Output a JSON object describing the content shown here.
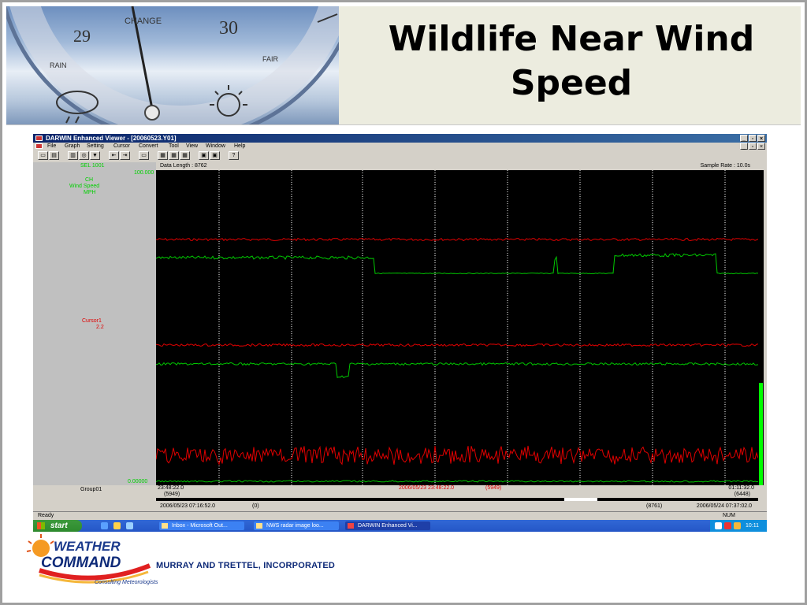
{
  "slide": {
    "title": "Wildlife Near Wind Speed",
    "company": "MURRAY AND TRETTEL, INCORPORATED",
    "logo": {
      "word1": "WEATHER",
      "word2": "COMMAND",
      "tagline": "Consulting Meteorologists"
    },
    "barometer": {
      "labels": [
        "CHANGE",
        "29",
        "30",
        "RAIN",
        "FAIR"
      ],
      "icons": [
        "cloud-rain-icon",
        "sun-icon"
      ]
    }
  },
  "app": {
    "window_title": "DARWIN Enhanced Viewer - [20060523.Y01]",
    "menu": [
      "File",
      "Graph",
      "Setting",
      "Cursor",
      "Convert",
      "Tool",
      "View",
      "Window",
      "Help"
    ],
    "toolbar_icons": [
      "open-icon",
      "print-icon",
      "copy-icon",
      "refresh-icon",
      "filter-icon",
      "zoom-out-icon",
      "zoom-in-icon",
      "fit-icon",
      "graph1-icon",
      "graph2-icon",
      "graph3-icon",
      "save-icon",
      "export-icon",
      "help-icon"
    ],
    "data_length": "Data Length : 8762",
    "sample_rate": "Sample Rate : 10.0s",
    "left_panel": {
      "top_label": "SEL 1001",
      "ch_label": "CH",
      "ch_desc": "Wind Speed",
      "ch_unit": "MPH",
      "ymax": "100.000",
      "cursor_label": "Cursor1",
      "cursor_value": "2.2",
      "ymin": "0.00000",
      "group": "Group01"
    },
    "axis": {
      "left_time": "23:48:22.0",
      "left_index": "(5949)",
      "cursor_time": "2006/05/23 23:48:22.0",
      "cursor_index": "(5949)",
      "right_time": "01:11:32.0",
      "right_index": "(6448)"
    },
    "range": {
      "start_time": "2006/05/23 07:16:52.0",
      "start_index": "(0)",
      "end_index": "(8761)",
      "end_time": "2006/05/24 07:37:02.0"
    },
    "status": {
      "left": "Ready",
      "right": "NUM"
    },
    "taskbar": {
      "start": "start",
      "tasks": [
        "Inbox - Microsoft Out...",
        "NWS radar image loo...",
        "DARWIN Enhanced Vi..."
      ],
      "clock": "10:11"
    },
    "colors": {
      "plot_bg": "#000000",
      "trace_red": "#e00000",
      "trace_green": "#00c800",
      "grid": "#ffffff"
    }
  }
}
